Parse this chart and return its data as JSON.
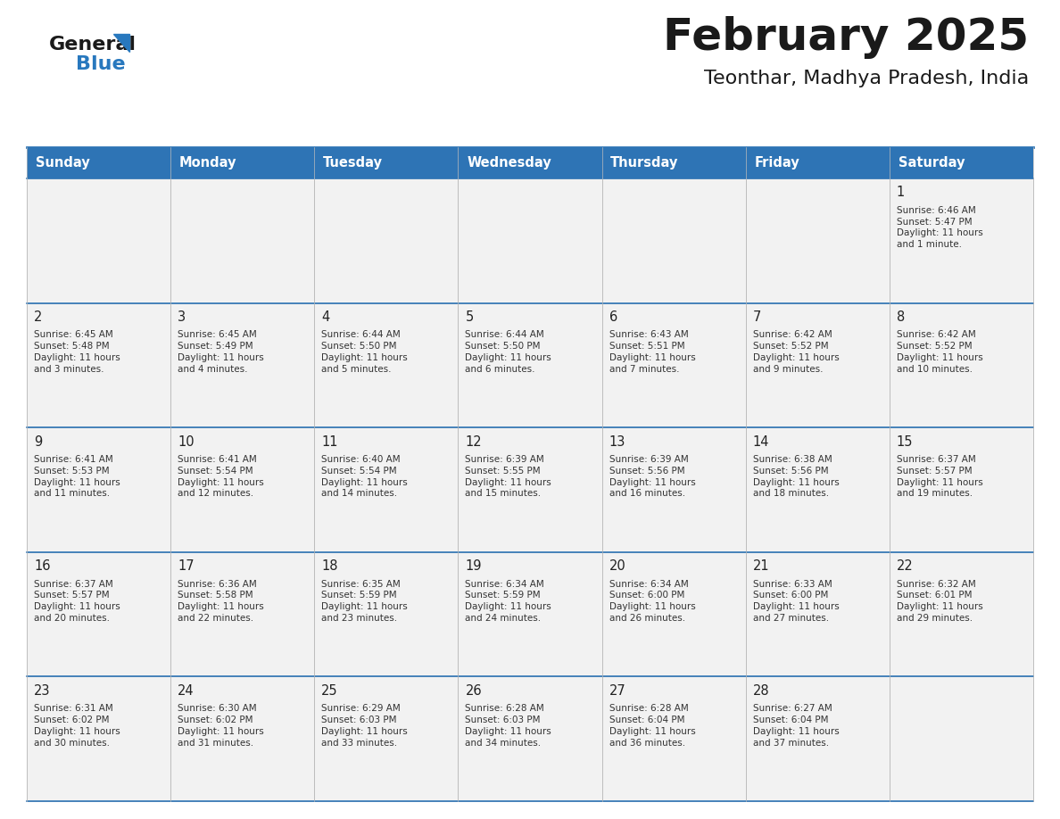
{
  "title": "February 2025",
  "subtitle": "Teonthar, Madhya Pradesh, India",
  "header_bg": "#2e74b5",
  "header_text": "#ffffff",
  "cell_bg": "#f2f2f2",
  "border_color": "#2e74b5",
  "grid_color": "#aaaaaa",
  "text_color": "#222222",
  "day_names": [
    "Sunday",
    "Monday",
    "Tuesday",
    "Wednesday",
    "Thursday",
    "Friday",
    "Saturday"
  ],
  "days": [
    {
      "day": 1,
      "col": 6,
      "row": 0,
      "sunrise": "6:46 AM",
      "sunset": "5:47 PM",
      "daylight": "11 hours\nand 1 minute."
    },
    {
      "day": 2,
      "col": 0,
      "row": 1,
      "sunrise": "6:45 AM",
      "sunset": "5:48 PM",
      "daylight": "11 hours\nand 3 minutes."
    },
    {
      "day": 3,
      "col": 1,
      "row": 1,
      "sunrise": "6:45 AM",
      "sunset": "5:49 PM",
      "daylight": "11 hours\nand 4 minutes."
    },
    {
      "day": 4,
      "col": 2,
      "row": 1,
      "sunrise": "6:44 AM",
      "sunset": "5:50 PM",
      "daylight": "11 hours\nand 5 minutes."
    },
    {
      "day": 5,
      "col": 3,
      "row": 1,
      "sunrise": "6:44 AM",
      "sunset": "5:50 PM",
      "daylight": "11 hours\nand 6 minutes."
    },
    {
      "day": 6,
      "col": 4,
      "row": 1,
      "sunrise": "6:43 AM",
      "sunset": "5:51 PM",
      "daylight": "11 hours\nand 7 minutes."
    },
    {
      "day": 7,
      "col": 5,
      "row": 1,
      "sunrise": "6:42 AM",
      "sunset": "5:52 PM",
      "daylight": "11 hours\nand 9 minutes."
    },
    {
      "day": 8,
      "col": 6,
      "row": 1,
      "sunrise": "6:42 AM",
      "sunset": "5:52 PM",
      "daylight": "11 hours\nand 10 minutes."
    },
    {
      "day": 9,
      "col": 0,
      "row": 2,
      "sunrise": "6:41 AM",
      "sunset": "5:53 PM",
      "daylight": "11 hours\nand 11 minutes."
    },
    {
      "day": 10,
      "col": 1,
      "row": 2,
      "sunrise": "6:41 AM",
      "sunset": "5:54 PM",
      "daylight": "11 hours\nand 12 minutes."
    },
    {
      "day": 11,
      "col": 2,
      "row": 2,
      "sunrise": "6:40 AM",
      "sunset": "5:54 PM",
      "daylight": "11 hours\nand 14 minutes."
    },
    {
      "day": 12,
      "col": 3,
      "row": 2,
      "sunrise": "6:39 AM",
      "sunset": "5:55 PM",
      "daylight": "11 hours\nand 15 minutes."
    },
    {
      "day": 13,
      "col": 4,
      "row": 2,
      "sunrise": "6:39 AM",
      "sunset": "5:56 PM",
      "daylight": "11 hours\nand 16 minutes."
    },
    {
      "day": 14,
      "col": 5,
      "row": 2,
      "sunrise": "6:38 AM",
      "sunset": "5:56 PM",
      "daylight": "11 hours\nand 18 minutes."
    },
    {
      "day": 15,
      "col": 6,
      "row": 2,
      "sunrise": "6:37 AM",
      "sunset": "5:57 PM",
      "daylight": "11 hours\nand 19 minutes."
    },
    {
      "day": 16,
      "col": 0,
      "row": 3,
      "sunrise": "6:37 AM",
      "sunset": "5:57 PM",
      "daylight": "11 hours\nand 20 minutes."
    },
    {
      "day": 17,
      "col": 1,
      "row": 3,
      "sunrise": "6:36 AM",
      "sunset": "5:58 PM",
      "daylight": "11 hours\nand 22 minutes."
    },
    {
      "day": 18,
      "col": 2,
      "row": 3,
      "sunrise": "6:35 AM",
      "sunset": "5:59 PM",
      "daylight": "11 hours\nand 23 minutes."
    },
    {
      "day": 19,
      "col": 3,
      "row": 3,
      "sunrise": "6:34 AM",
      "sunset": "5:59 PM",
      "daylight": "11 hours\nand 24 minutes."
    },
    {
      "day": 20,
      "col": 4,
      "row": 3,
      "sunrise": "6:34 AM",
      "sunset": "6:00 PM",
      "daylight": "11 hours\nand 26 minutes."
    },
    {
      "day": 21,
      "col": 5,
      "row": 3,
      "sunrise": "6:33 AM",
      "sunset": "6:00 PM",
      "daylight": "11 hours\nand 27 minutes."
    },
    {
      "day": 22,
      "col": 6,
      "row": 3,
      "sunrise": "6:32 AM",
      "sunset": "6:01 PM",
      "daylight": "11 hours\nand 29 minutes."
    },
    {
      "day": 23,
      "col": 0,
      "row": 4,
      "sunrise": "6:31 AM",
      "sunset": "6:02 PM",
      "daylight": "11 hours\nand 30 minutes."
    },
    {
      "day": 24,
      "col": 1,
      "row": 4,
      "sunrise": "6:30 AM",
      "sunset": "6:02 PM",
      "daylight": "11 hours\nand 31 minutes."
    },
    {
      "day": 25,
      "col": 2,
      "row": 4,
      "sunrise": "6:29 AM",
      "sunset": "6:03 PM",
      "daylight": "11 hours\nand 33 minutes."
    },
    {
      "day": 26,
      "col": 3,
      "row": 4,
      "sunrise": "6:28 AM",
      "sunset": "6:03 PM",
      "daylight": "11 hours\nand 34 minutes."
    },
    {
      "day": 27,
      "col": 4,
      "row": 4,
      "sunrise": "6:28 AM",
      "sunset": "6:04 PM",
      "daylight": "11 hours\nand 36 minutes."
    },
    {
      "day": 28,
      "col": 5,
      "row": 4,
      "sunrise": "6:27 AM",
      "sunset": "6:04 PM",
      "daylight": "11 hours\nand 37 minutes."
    }
  ]
}
